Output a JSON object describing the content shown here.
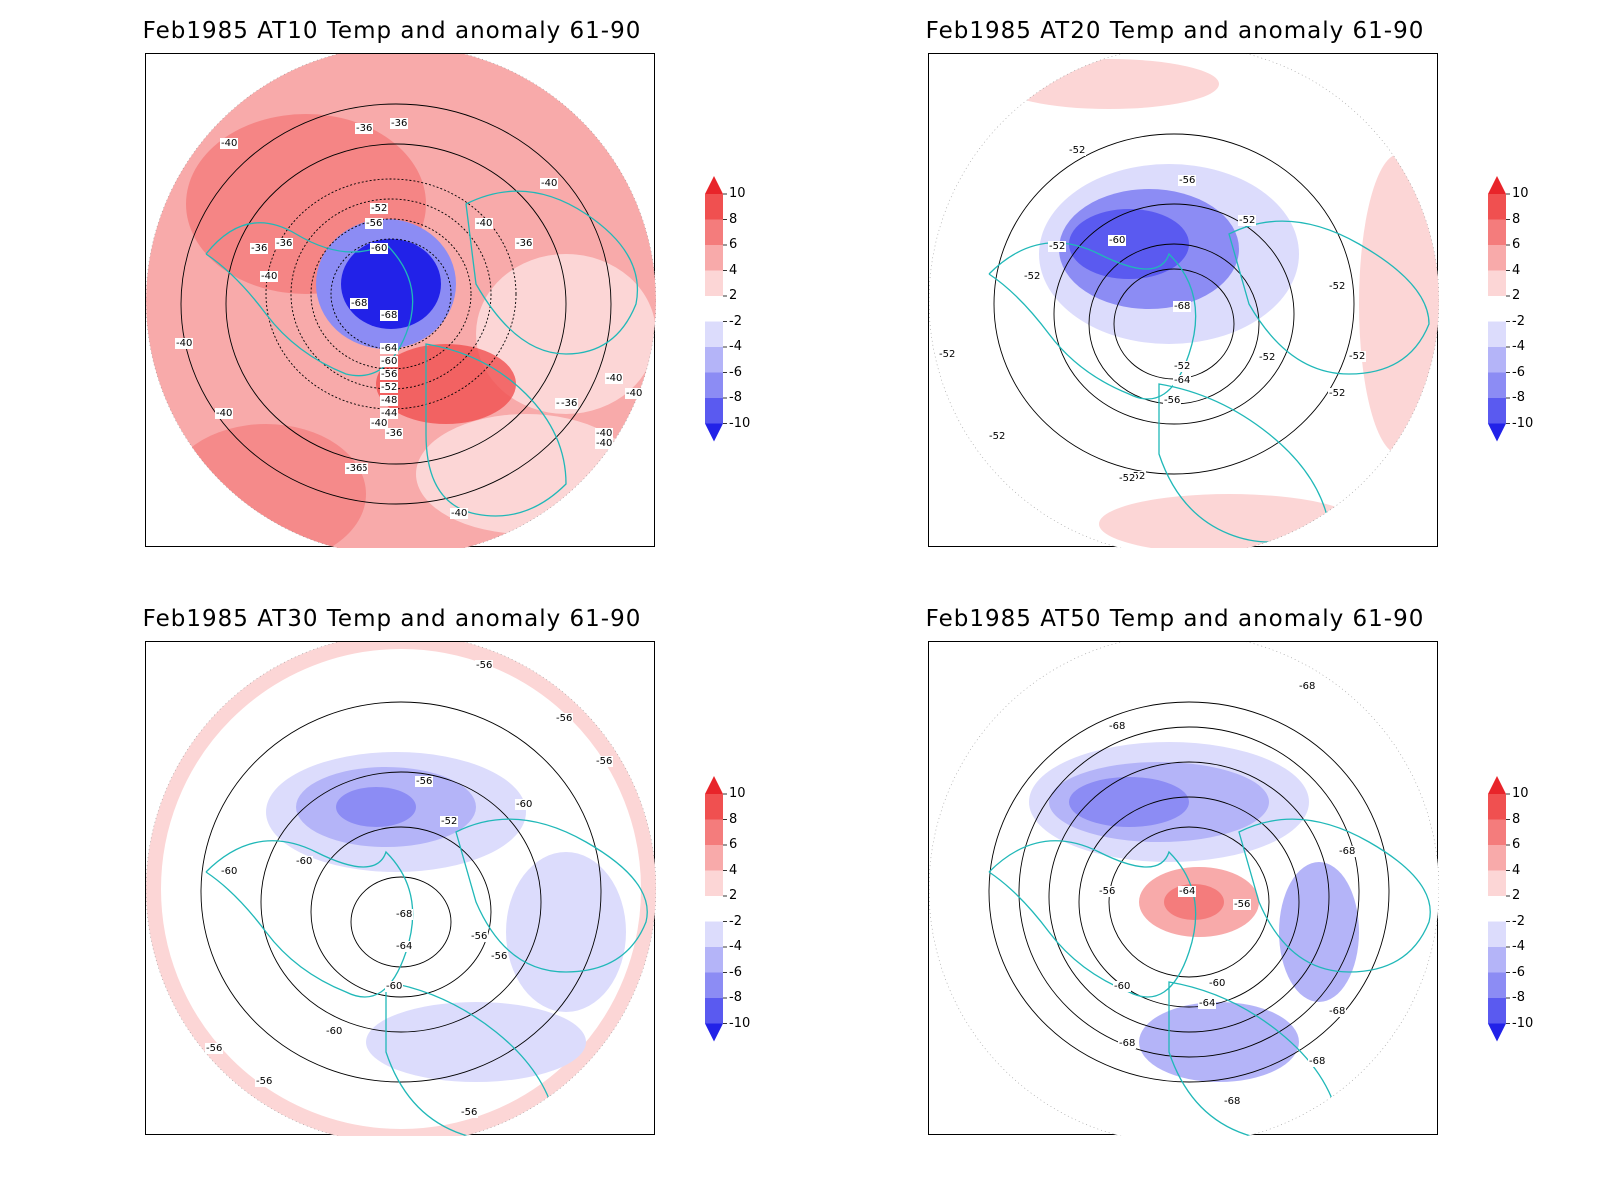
{
  "panels": [
    {
      "title": "Feb1985 AT10 Temp and anomaly 61-90",
      "contour_labels": [
        "-36",
        "-36",
        "-40",
        "-40",
        "-36",
        "-40",
        "-40",
        "-36",
        "-40",
        "-52",
        "-56",
        "-60",
        "-68",
        "-68",
        "-64",
        "-60",
        "-56",
        "-52",
        "-48",
        "-44",
        "-40",
        "-36",
        "-36",
        "-40",
        "-36",
        "-36",
        "-40",
        "-40",
        "-40",
        "-40",
        "-36",
        "-36",
        "-40"
      ]
    },
    {
      "title": "Feb1985 AT20 Temp and anomaly 61-90",
      "contour_labels": [
        "-52",
        "-56",
        "-60",
        "-52",
        "-52",
        "-52",
        "-68",
        "-52",
        "-52",
        "-52",
        "-52",
        "-52",
        "-52",
        "-52",
        "-64",
        "-60",
        "-56",
        "-52",
        "-52"
      ]
    },
    {
      "title": "Feb1985 AT30 Temp and anomaly 61-90",
      "contour_labels": [
        "-56",
        "-56",
        "-56",
        "-56",
        "-60",
        "-52",
        "-60",
        "-60",
        "-68",
        "-56",
        "-56",
        "-64",
        "-60",
        "-60",
        "-56",
        "-56",
        "-56"
      ]
    },
    {
      "title": "Feb1985 AT50 Temp and anomaly 61-90",
      "contour_labels": [
        "-68",
        "-68",
        "-68",
        "-56",
        "-64",
        "-56",
        "-60",
        "-60",
        "-64",
        "-68",
        "-68",
        "-68",
        "-68"
      ]
    }
  ],
  "colorbar": {
    "labels": [
      "10",
      "8",
      "6",
      "4",
      "2",
      "-2",
      "-4",
      "-6",
      "-8",
      "-10"
    ],
    "colors": [
      "#e8242a",
      "#f05050",
      "#f47c7c",
      "#f8aaaa",
      "#fcd6d6",
      "#ffffff",
      "#dcdcfc",
      "#b4b4f8",
      "#8c8cf4",
      "#5a5af0",
      "#2222e8"
    ]
  },
  "coastline_color": "#20b8b8"
}
